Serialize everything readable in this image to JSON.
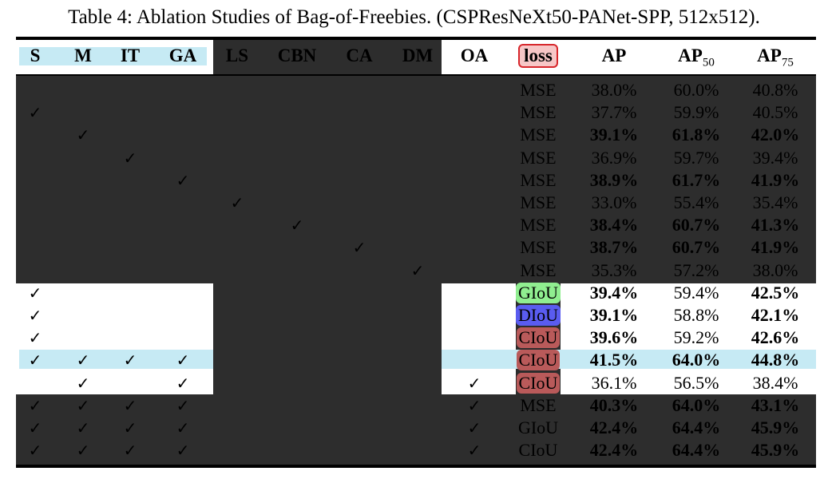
{
  "caption": "Table 4: Ablation Studies of Bag-of-Freebies. (CSPResNeXt50-PANet-SPP, 512x512).",
  "table": {
    "headers": [
      "S",
      "M",
      "IT",
      "GA",
      "LS",
      "CBN",
      "CA",
      "DM",
      "OA",
      "loss",
      "AP",
      "AP",
      "AP"
    ],
    "header_subscripts": {
      "11": "50",
      "12": "75"
    },
    "check_symbol": "✓",
    "colors": {
      "dark": "#2d2d2d",
      "cyan": "#c6eaf4",
      "loss_header_bg": "#f7c7c7",
      "loss_header_border": "#d7262b",
      "giou_bg": "#90ee90",
      "diou_bg": "#5a5cf0",
      "ciou_bg": "#b95a5a"
    },
    "rows": [
      {
        "checks": [
          0,
          0,
          0,
          0,
          0,
          0,
          0,
          0,
          0
        ],
        "loss": "MSE",
        "ap": "38.0%",
        "ap50": "60.0%",
        "ap75": "40.8%",
        "bold": [
          0,
          0,
          0
        ]
      },
      {
        "checks": [
          1,
          0,
          0,
          0,
          0,
          0,
          0,
          0,
          0
        ],
        "loss": "MSE",
        "ap": "37.7%",
        "ap50": "59.9%",
        "ap75": "40.5%",
        "bold": [
          0,
          0,
          0
        ]
      },
      {
        "checks": [
          0,
          1,
          0,
          0,
          0,
          0,
          0,
          0,
          0
        ],
        "loss": "MSE",
        "ap": "39.1%",
        "ap50": "61.8%",
        "ap75": "42.0%",
        "bold": [
          1,
          1,
          1
        ]
      },
      {
        "checks": [
          0,
          0,
          1,
          0,
          0,
          0,
          0,
          0,
          0
        ],
        "loss": "MSE",
        "ap": "36.9%",
        "ap50": "59.7%",
        "ap75": "39.4%",
        "bold": [
          0,
          0,
          0
        ]
      },
      {
        "checks": [
          0,
          0,
          0,
          1,
          0,
          0,
          0,
          0,
          0
        ],
        "loss": "MSE",
        "ap": "38.9%",
        "ap50": "61.7%",
        "ap75": "41.9%",
        "bold": [
          1,
          1,
          1
        ]
      },
      {
        "checks": [
          0,
          0,
          0,
          0,
          1,
          0,
          0,
          0,
          0
        ],
        "loss": "MSE",
        "ap": "33.0%",
        "ap50": "55.4%",
        "ap75": "35.4%",
        "bold": [
          0,
          0,
          0
        ]
      },
      {
        "checks": [
          0,
          0,
          0,
          0,
          0,
          1,
          0,
          0,
          0
        ],
        "loss": "MSE",
        "ap": "38.4%",
        "ap50": "60.7%",
        "ap75": "41.3%",
        "bold": [
          1,
          1,
          1
        ]
      },
      {
        "checks": [
          0,
          0,
          0,
          0,
          0,
          0,
          1,
          0,
          0
        ],
        "loss": "MSE",
        "ap": "38.7%",
        "ap50": "60.7%",
        "ap75": "41.9%",
        "bold": [
          1,
          1,
          1
        ]
      },
      {
        "checks": [
          0,
          0,
          0,
          0,
          0,
          0,
          0,
          1,
          0
        ],
        "loss": "MSE",
        "ap": "35.3%",
        "ap50": "57.2%",
        "ap75": "38.0%",
        "bold": [
          0,
          0,
          0
        ]
      },
      {
        "checks": [
          1,
          0,
          0,
          0,
          0,
          0,
          0,
          0,
          0
        ],
        "loss": "GIoU",
        "ap": "39.4%",
        "ap50": "59.4%",
        "ap75": "42.5%",
        "bold": [
          1,
          0,
          1
        ]
      },
      {
        "checks": [
          1,
          0,
          0,
          0,
          0,
          0,
          0,
          0,
          0
        ],
        "loss": "DIoU",
        "ap": "39.1%",
        "ap50": "58.8%",
        "ap75": "42.1%",
        "bold": [
          1,
          0,
          1
        ]
      },
      {
        "checks": [
          1,
          0,
          0,
          0,
          0,
          0,
          0,
          0,
          0
        ],
        "loss": "CIoU",
        "ap": "39.6%",
        "ap50": "59.2%",
        "ap75": "42.6%",
        "bold": [
          1,
          0,
          1
        ]
      },
      {
        "checks": [
          1,
          1,
          1,
          1,
          0,
          0,
          0,
          0,
          0
        ],
        "loss": "CIoU",
        "ap": "41.5%",
        "ap50": "64.0%",
        "ap75": "44.8%",
        "bold": [
          1,
          1,
          1
        ]
      },
      {
        "checks": [
          0,
          1,
          0,
          1,
          0,
          0,
          0,
          0,
          1
        ],
        "loss": "CIoU",
        "ap": "36.1%",
        "ap50": "56.5%",
        "ap75": "38.4%",
        "bold": [
          0,
          0,
          0
        ]
      },
      {
        "checks": [
          1,
          1,
          1,
          1,
          0,
          0,
          0,
          0,
          1
        ],
        "loss": "MSE",
        "ap": "40.3%",
        "ap50": "64.0%",
        "ap75": "43.1%",
        "bold": [
          1,
          1,
          1
        ]
      },
      {
        "checks": [
          1,
          1,
          1,
          1,
          0,
          0,
          0,
          0,
          1
        ],
        "loss": "GIoU",
        "ap": "42.4%",
        "ap50": "64.4%",
        "ap75": "45.9%",
        "bold": [
          1,
          1,
          1
        ]
      },
      {
        "checks": [
          1,
          1,
          1,
          1,
          0,
          0,
          0,
          0,
          1
        ],
        "loss": "CIoU",
        "ap": "42.4%",
        "ap50": "64.4%",
        "ap75": "45.9%",
        "bold": [
          1,
          1,
          1
        ]
      }
    ]
  }
}
